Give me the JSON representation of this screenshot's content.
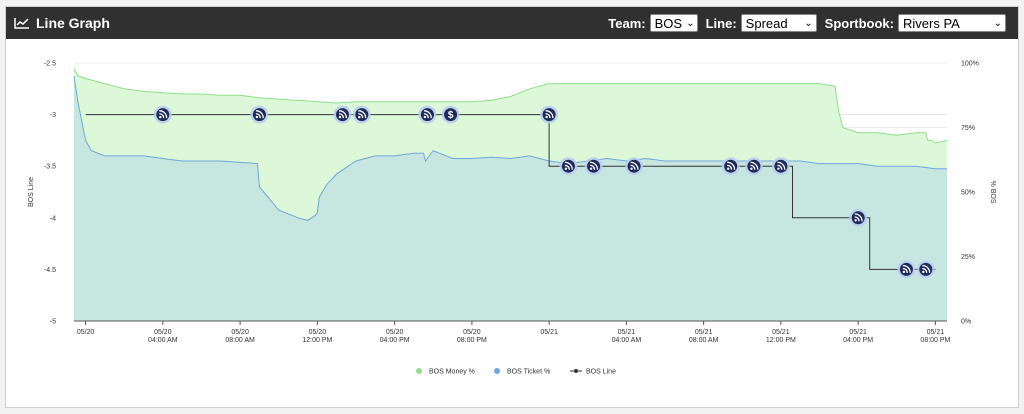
{
  "header": {
    "title": "Line Graph",
    "team_label": "Team:",
    "team_value": "BOS",
    "line_label": "Line:",
    "line_value": "Spread",
    "sportbook_label": "Sportbook:",
    "sportbook_value": "Rivers PA"
  },
  "chart_data": {
    "type": "line",
    "y_left_label": "BOS Line",
    "y_right_label": "% BOS",
    "y_left_ticks": [
      "-2.5",
      "-3",
      "-3.5",
      "-4",
      "-4.5",
      "-5"
    ],
    "y_left_range": [
      -5,
      -2.5
    ],
    "y_right_ticks": [
      "100%",
      "75%",
      "50%",
      "25%",
      "0%"
    ],
    "y_right_range": [
      0,
      100
    ],
    "x_ticks": [
      {
        "t": 0,
        "line1": "05/20",
        "line2": ""
      },
      {
        "t": 4,
        "line1": "05/20",
        "line2": "04:00 AM"
      },
      {
        "t": 8,
        "line1": "05/20",
        "line2": "08:00 AM"
      },
      {
        "t": 12,
        "line1": "05/20",
        "line2": "12:00 PM"
      },
      {
        "t": 16,
        "line1": "05/20",
        "line2": "04:00 PM"
      },
      {
        "t": 20,
        "line1": "05/20",
        "line2": "08:00 PM"
      },
      {
        "t": 24,
        "line1": "05/21",
        "line2": ""
      },
      {
        "t": 28,
        "line1": "05/21",
        "line2": "04:00 AM"
      },
      {
        "t": 32,
        "line1": "05/21",
        "line2": "08:00 AM"
      },
      {
        "t": 36,
        "line1": "05/21",
        "line2": "12:00 PM"
      },
      {
        "t": 40,
        "line1": "05/21",
        "line2": "04:00 PM"
      },
      {
        "t": 44,
        "line1": "05/21",
        "line2": "08:00 PM"
      }
    ],
    "x_range": [
      -0.6,
      44.6
    ],
    "series": [
      {
        "name": "BOS Money %",
        "color": "#8fe08a",
        "fill": "#dcf8d8",
        "values": [
          [
            -0.6,
            98
          ],
          [
            -0.4,
            95
          ],
          [
            0,
            94
          ],
          [
            1,
            92
          ],
          [
            2,
            90
          ],
          [
            3,
            89
          ],
          [
            4,
            88.5
          ],
          [
            5,
            88
          ],
          [
            6,
            88
          ],
          [
            7,
            87.5
          ],
          [
            8,
            87.5
          ],
          [
            9,
            86.5
          ],
          [
            10,
            86
          ],
          [
            11,
            85.5
          ],
          [
            12,
            85
          ],
          [
            13,
            84.5
          ],
          [
            14,
            85
          ],
          [
            15,
            85
          ],
          [
            16,
            85
          ],
          [
            17,
            85
          ],
          [
            18,
            85
          ],
          [
            19,
            85
          ],
          [
            20,
            85
          ],
          [
            21,
            85.5
          ],
          [
            22,
            87
          ],
          [
            23,
            90
          ],
          [
            24,
            92
          ],
          [
            25,
            92
          ],
          [
            26,
            92
          ],
          [
            27,
            92
          ],
          [
            28,
            92
          ],
          [
            29,
            92
          ],
          [
            30,
            92
          ],
          [
            31,
            92
          ],
          [
            32,
            92
          ],
          [
            33,
            92
          ],
          [
            34,
            92
          ],
          [
            35,
            92
          ],
          [
            36,
            92
          ],
          [
            37,
            92
          ],
          [
            38,
            92
          ],
          [
            38.8,
            91
          ],
          [
            39,
            81
          ],
          [
            39.2,
            75
          ],
          [
            40,
            73
          ],
          [
            41,
            73
          ],
          [
            42,
            72
          ],
          [
            43,
            73
          ],
          [
            43.5,
            73
          ],
          [
            43.6,
            70
          ],
          [
            43.8,
            70
          ],
          [
            44,
            69
          ],
          [
            44.6,
            70
          ]
        ]
      },
      {
        "name": "BOS Ticket %",
        "color": "#6fa8dc",
        "fill": "#c8e6e0",
        "values": [
          [
            -0.6,
            95
          ],
          [
            -0.5,
            90
          ],
          [
            -0.4,
            85
          ],
          [
            0,
            70
          ],
          [
            0.3,
            66
          ],
          [
            1,
            64
          ],
          [
            2,
            64
          ],
          [
            3,
            64
          ],
          [
            4,
            63
          ],
          [
            5,
            62
          ],
          [
            6,
            62
          ],
          [
            7,
            62
          ],
          [
            8.9,
            61
          ],
          [
            9,
            52
          ],
          [
            10,
            43
          ],
          [
            11,
            40
          ],
          [
            11.5,
            39
          ],
          [
            11.9,
            41
          ],
          [
            12,
            42
          ],
          [
            12.1,
            48
          ],
          [
            12.5,
            53
          ],
          [
            13,
            57
          ],
          [
            14,
            62
          ],
          [
            15,
            64
          ],
          [
            16,
            64
          ],
          [
            17,
            65
          ],
          [
            17.5,
            65
          ],
          [
            17.6,
            62
          ],
          [
            18,
            66
          ],
          [
            19,
            63
          ],
          [
            20,
            63
          ],
          [
            21,
            63.5
          ],
          [
            22,
            63
          ],
          [
            23,
            64
          ],
          [
            24,
            62
          ],
          [
            25,
            61
          ],
          [
            26,
            62
          ],
          [
            27,
            63
          ],
          [
            28,
            62
          ],
          [
            29,
            63
          ],
          [
            30,
            62
          ],
          [
            31,
            62
          ],
          [
            32,
            62
          ],
          [
            33,
            62
          ],
          [
            34,
            62
          ],
          [
            35,
            62
          ],
          [
            36,
            62
          ],
          [
            37,
            62
          ],
          [
            38,
            61
          ],
          [
            39,
            61
          ],
          [
            40,
            61
          ],
          [
            41,
            60
          ],
          [
            42,
            60
          ],
          [
            43,
            60
          ],
          [
            44,
            59
          ],
          [
            44.6,
            59
          ]
        ]
      },
      {
        "name": "BOS Line",
        "color": "#333333",
        "fill": "none",
        "values": [
          [
            0,
            -3
          ],
          [
            24,
            -3
          ],
          [
            24,
            -3.5
          ],
          [
            36.6,
            -3.5
          ],
          [
            36.6,
            -4
          ],
          [
            40.6,
            -4
          ],
          [
            40.6,
            -4.5
          ],
          [
            44,
            -4.5
          ]
        ]
      }
    ],
    "markers": [
      {
        "t": 4,
        "line": -3,
        "icon": "rss-icon"
      },
      {
        "t": 9,
        "line": -3,
        "icon": "rss-icon"
      },
      {
        "t": 13.3,
        "line": -3,
        "icon": "rss-icon"
      },
      {
        "t": 14.3,
        "line": -3,
        "icon": "rss-icon"
      },
      {
        "t": 17.7,
        "line": -3,
        "icon": "rss-icon"
      },
      {
        "t": 18.9,
        "line": -3,
        "icon": "dollar-icon"
      },
      {
        "t": 24,
        "line": -3,
        "icon": "rss-icon"
      },
      {
        "t": 25,
        "line": -3.5,
        "icon": "rss-icon"
      },
      {
        "t": 26.3,
        "line": -3.5,
        "icon": "rss-icon"
      },
      {
        "t": 28.4,
        "line": -3.5,
        "icon": "rss-icon"
      },
      {
        "t": 33.4,
        "line": -3.5,
        "icon": "rss-icon"
      },
      {
        "t": 34.6,
        "line": -3.5,
        "icon": "rss-icon"
      },
      {
        "t": 36,
        "line": -3.5,
        "icon": "rss-icon"
      },
      {
        "t": 40,
        "line": -4,
        "icon": "rss-icon"
      },
      {
        "t": 42.5,
        "line": -4.5,
        "icon": "rss-icon"
      },
      {
        "t": 43.5,
        "line": -4.5,
        "icon": "rss-icon"
      }
    ],
    "legend": [
      {
        "label": "BOS Money %",
        "color": "#8fe08a",
        "symbol": "dot"
      },
      {
        "label": "BOS Ticket %",
        "color": "#6fa8dc",
        "symbol": "dot"
      },
      {
        "label": "BOS Line",
        "color": "#333333",
        "symbol": "line-dot"
      }
    ],
    "legend_position": "bottom-center",
    "grid": true
  }
}
